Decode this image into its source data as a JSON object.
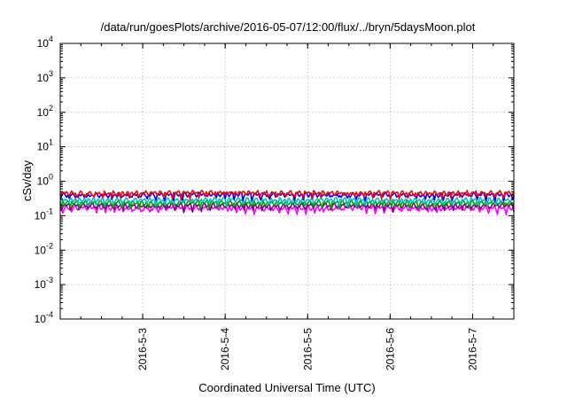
{
  "chart_data": {
    "type": "line",
    "title": "/data/run/goesPlots/archive/2016-05-07/12:00/flux/../bryn/5daysMoon.plot",
    "xlabel": "Coordinated Universal Time (UTC)",
    "ylabel": "cSv/day",
    "yscale": "log",
    "ylim": [
      0.0001,
      10000
    ],
    "xlim": [
      "2016-05-02 00:00",
      "2016-05-07 12:00"
    ],
    "grid": true,
    "legend": "none",
    "x_ticks": [
      "2016-5-3",
      "2016-5-4",
      "2016-5-5",
      "2016-5-6",
      "2016-5-7"
    ],
    "y_ticks": [
      {
        "base": "10",
        "exp": "-4",
        "value": 0.0001
      },
      {
        "base": "10",
        "exp": "-3",
        "value": 0.001
      },
      {
        "base": "10",
        "exp": "-2",
        "value": 0.01
      },
      {
        "base": "10",
        "exp": "-1",
        "value": 0.1
      },
      {
        "base": "10",
        "exp": "0",
        "value": 1
      },
      {
        "base": "10",
        "exp": "1",
        "value": 10
      },
      {
        "base": "10",
        "exp": "2",
        "value": 100
      },
      {
        "base": "10",
        "exp": "3",
        "value": 1000
      },
      {
        "base": "10",
        "exp": "4",
        "value": 10000
      }
    ],
    "series": [
      {
        "color": "#ff00ff",
        "x": [
          "2016-05-02 00:00",
          "2016-05-02 12:00",
          "2016-05-03 00:00",
          "2016-05-03 12:00",
          "2016-05-04 00:00",
          "2016-05-04 12:00",
          "2016-05-05 00:00",
          "2016-05-05 12:00",
          "2016-05-06 00:00",
          "2016-05-06 12:00",
          "2016-05-07 00:00",
          "2016-05-07 12:00"
        ],
        "values": [
          0.17,
          0.17,
          0.16,
          0.17,
          0.17,
          0.16,
          0.16,
          0.17,
          0.17,
          0.16,
          0.17,
          0.16
        ]
      },
      {
        "color": "#800080",
        "x": [
          "2016-05-02 00:00",
          "2016-05-02 12:00",
          "2016-05-03 00:00",
          "2016-05-03 12:00",
          "2016-05-04 00:00",
          "2016-05-04 12:00",
          "2016-05-05 00:00",
          "2016-05-05 12:00",
          "2016-05-06 00:00",
          "2016-05-06 12:00",
          "2016-05-07 00:00",
          "2016-05-07 12:00"
        ],
        "values": [
          0.2,
          0.2,
          0.19,
          0.2,
          0.2,
          0.19,
          0.2,
          0.2,
          0.2,
          0.19,
          0.2,
          0.2
        ]
      },
      {
        "color": "#00a000",
        "x": [
          "2016-05-02 00:00",
          "2016-05-02 12:00",
          "2016-05-03 00:00",
          "2016-05-03 12:00",
          "2016-05-04 00:00",
          "2016-05-04 12:00",
          "2016-05-05 00:00",
          "2016-05-05 12:00",
          "2016-05-06 00:00",
          "2016-05-06 12:00",
          "2016-05-07 00:00",
          "2016-05-07 12:00"
        ],
        "values": [
          0.24,
          0.24,
          0.23,
          0.24,
          0.24,
          0.23,
          0.24,
          0.24,
          0.24,
          0.23,
          0.24,
          0.24
        ]
      },
      {
        "color": "#00c0c0",
        "x": [
          "2016-05-02 00:00",
          "2016-05-02 12:00",
          "2016-05-03 00:00",
          "2016-05-03 12:00",
          "2016-05-04 00:00",
          "2016-05-04 12:00",
          "2016-05-05 00:00",
          "2016-05-05 12:00",
          "2016-05-06 00:00",
          "2016-05-06 12:00",
          "2016-05-07 00:00",
          "2016-05-07 12:00"
        ],
        "values": [
          0.29,
          0.29,
          0.28,
          0.29,
          0.3,
          0.28,
          0.29,
          0.29,
          0.29,
          0.28,
          0.29,
          0.29
        ]
      },
      {
        "color": "#0000ff",
        "x": [
          "2016-05-02 00:00",
          "2016-05-02 12:00",
          "2016-05-03 00:00",
          "2016-05-03 12:00",
          "2016-05-04 00:00",
          "2016-05-04 12:00",
          "2016-05-05 00:00",
          "2016-05-05 12:00",
          "2016-05-06 00:00",
          "2016-05-06 12:00",
          "2016-05-07 00:00",
          "2016-05-07 12:00"
        ],
        "values": [
          0.4,
          0.39,
          0.4,
          0.41,
          0.42,
          0.4,
          0.41,
          0.4,
          0.41,
          0.39,
          0.41,
          0.4
        ]
      },
      {
        "color": "#ff0000",
        "x": [
          "2016-05-02 00:00",
          "2016-05-02 12:00",
          "2016-05-03 00:00",
          "2016-05-03 12:00",
          "2016-05-04 00:00",
          "2016-05-04 12:00",
          "2016-05-05 00:00",
          "2016-05-05 12:00",
          "2016-05-06 00:00",
          "2016-05-06 12:00",
          "2016-05-07 00:00",
          "2016-05-07 12:00"
        ],
        "values": [
          0.45,
          0.44,
          0.45,
          0.46,
          0.48,
          0.45,
          0.46,
          0.45,
          0.46,
          0.44,
          0.46,
          0.45
        ]
      }
    ]
  }
}
